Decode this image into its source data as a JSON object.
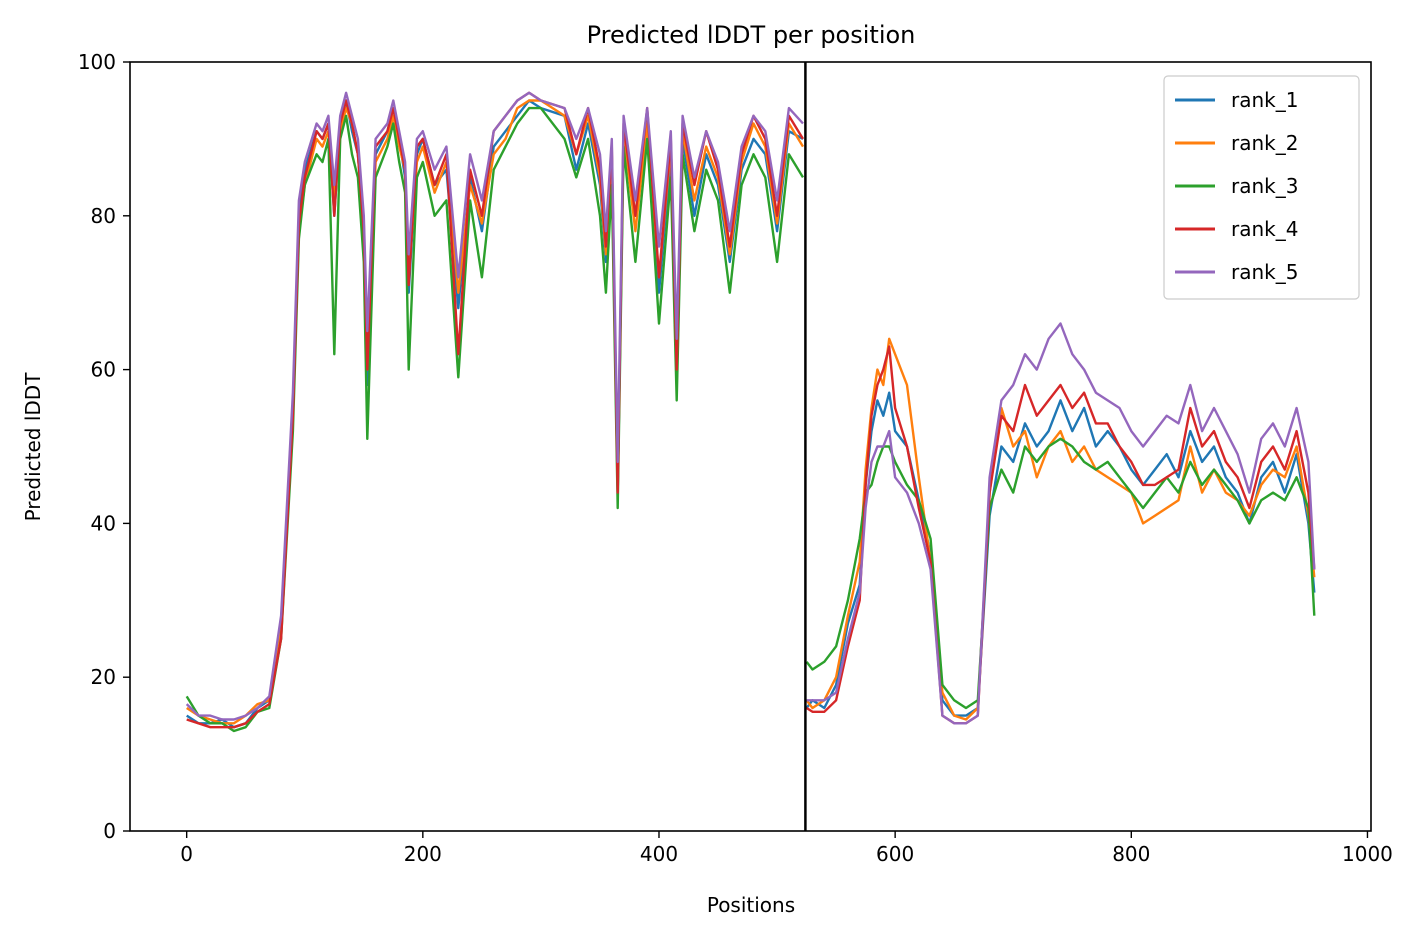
{
  "chart_data": {
    "type": "line",
    "title": "Predicted lDDT per position",
    "xlabel": "Positions",
    "ylabel": "Predicted lDDT",
    "xlim": [
      -48,
      1003
    ],
    "ylim": [
      0,
      100
    ],
    "xticks": [
      0,
      200,
      400,
      600,
      800,
      1000
    ],
    "yticks": [
      0,
      20,
      40,
      60,
      80,
      100
    ],
    "grid": false,
    "legend_position": "top-right",
    "chain_break": 524,
    "x": [
      0,
      10,
      20,
      30,
      40,
      50,
      60,
      70,
      80,
      90,
      95,
      100,
      110,
      115,
      120,
      125,
      130,
      135,
      140,
      145,
      150,
      153,
      160,
      170,
      175,
      180,
      185,
      188,
      195,
      200,
      210,
      220,
      230,
      240,
      250,
      260,
      270,
      280,
      290,
      300,
      320,
      330,
      340,
      350,
      355,
      360,
      365,
      370,
      380,
      390,
      400,
      410,
      415,
      420,
      430,
      440,
      450,
      460,
      470,
      480,
      490,
      500,
      510,
      522,
      525,
      530,
      540,
      550,
      560,
      570,
      575,
      580,
      585,
      590,
      595,
      600,
      610,
      620,
      630,
      640,
      650,
      660,
      670,
      680,
      690,
      700,
      710,
      720,
      730,
      740,
      750,
      760,
      770,
      780,
      790,
      800,
      810,
      820,
      830,
      840,
      850,
      860,
      870,
      880,
      890,
      900,
      910,
      920,
      930,
      940,
      950,
      955
    ],
    "series": [
      {
        "name": "rank_1",
        "color": "#1f77b4",
        "values": [
          15,
          14,
          14,
          14.5,
          13.5,
          14,
          16,
          17,
          27,
          55,
          80,
          86,
          91,
          90,
          92,
          80,
          92,
          95,
          91,
          88,
          78,
          58,
          88,
          91,
          94,
          90,
          85,
          70,
          88,
          90,
          84,
          86,
          68,
          85,
          78,
          89,
          91,
          93,
          95,
          94,
          93,
          86,
          92,
          84,
          74,
          87,
          44,
          91,
          80,
          92,
          70,
          88,
          58,
          90,
          80,
          88,
          84,
          74,
          86,
          90,
          88,
          78,
          91,
          90,
          16,
          17,
          16,
          19,
          27,
          32,
          45,
          52,
          56,
          54,
          57,
          52,
          50,
          43,
          36,
          17,
          15,
          15,
          16,
          41,
          50,
          48,
          53,
          50,
          52,
          56,
          52,
          55,
          50,
          52,
          50,
          47,
          45,
          47,
          49,
          46,
          52,
          48,
          50,
          46,
          44,
          40,
          46,
          48,
          44,
          49,
          40,
          31
        ]
      },
      {
        "name": "rank_2",
        "color": "#ff7f0e",
        "values": [
          16,
          15,
          14.5,
          14,
          14,
          15,
          16.5,
          17,
          26,
          55,
          78,
          84,
          90,
          89,
          91,
          82,
          91,
          94,
          92,
          88,
          79,
          60,
          87,
          90,
          93,
          89,
          86,
          72,
          87,
          89,
          83,
          87,
          70,
          84,
          79,
          88,
          90,
          94,
          95,
          95,
          93,
          88,
          93,
          85,
          75,
          88,
          45,
          91,
          78,
          92,
          72,
          89,
          60,
          91,
          82,
          89,
          85,
          75,
          87,
          92,
          89,
          79,
          92,
          89,
          17,
          16,
          17,
          20,
          28,
          35,
          47,
          55,
          60,
          58,
          64,
          62,
          58,
          46,
          35,
          18,
          15,
          14.5,
          16,
          44,
          55,
          50,
          52,
          46,
          50,
          52,
          48,
          50,
          47,
          46,
          45,
          44,
          40,
          41,
          42,
          43,
          50,
          44,
          47,
          44,
          43,
          41,
          45,
          47,
          46,
          50,
          41,
          33
        ]
      },
      {
        "name": "rank_3",
        "color": "#2ca02c",
        "values": [
          17.5,
          15,
          14,
          14,
          13,
          13.5,
          15.5,
          16,
          25,
          52,
          77,
          84,
          88,
          87,
          90,
          62,
          90,
          93,
          88,
          85,
          74,
          51,
          85,
          89,
          92,
          87,
          83,
          60,
          85,
          87,
          80,
          82,
          59,
          82,
          72,
          86,
          89,
          92,
          94,
          94,
          90,
          85,
          90,
          80,
          70,
          84,
          42,
          89,
          74,
          90,
          66,
          85,
          56,
          88,
          78,
          86,
          82,
          70,
          84,
          88,
          85,
          74,
          88,
          85,
          22,
          21,
          22,
          24,
          30,
          38,
          44,
          45,
          48,
          50,
          50,
          48,
          45,
          43,
          38,
          19,
          17,
          16,
          17,
          42,
          47,
          44,
          50,
          48,
          50,
          51,
          50,
          48,
          47,
          48,
          46,
          44,
          42,
          44,
          46,
          44,
          48,
          45,
          47,
          45,
          43,
          40,
          43,
          44,
          43,
          46,
          42,
          28
        ]
      },
      {
        "name": "rank_4",
        "color": "#d62728",
        "values": [
          14.5,
          14,
          13.5,
          13.5,
          13.5,
          14,
          15.5,
          16.5,
          25,
          54,
          79,
          85,
          91,
          90,
          92,
          80,
          92,
          95,
          92,
          88,
          78,
          60,
          89,
          91,
          94,
          90,
          86,
          71,
          89,
          90,
          84,
          88,
          62,
          86,
          80,
          91,
          93,
          95,
          96,
          95,
          94,
          88,
          94,
          86,
          76,
          89,
          44,
          92,
          80,
          94,
          72,
          90,
          60,
          92,
          84,
          91,
          86,
          76,
          88,
          93,
          90,
          80,
          93,
          90,
          16,
          15.5,
          15.5,
          17,
          24,
          30,
          45,
          54,
          58,
          60,
          63,
          55,
          50,
          42,
          35,
          15,
          14,
          14,
          15,
          44,
          54,
          52,
          58,
          54,
          56,
          58,
          55,
          57,
          53,
          53,
          50,
          48,
          45,
          45,
          46,
          47,
          55,
          50,
          52,
          48,
          46,
          42,
          48,
          50,
          47,
          52,
          44,
          34
        ]
      },
      {
        "name": "rank_5",
        "color": "#9467bd",
        "values": [
          16.5,
          15,
          15,
          14.5,
          14.5,
          15,
          16,
          17.5,
          28,
          57,
          82,
          87,
          92,
          91,
          93,
          84,
          93,
          96,
          93,
          90,
          80,
          65,
          90,
          92,
          95,
          91,
          87,
          75,
          90,
          91,
          86,
          89,
          72,
          88,
          82,
          91,
          93,
          95,
          96,
          95,
          94,
          90,
          94,
          88,
          78,
          90,
          48,
          93,
          82,
          94,
          76,
          91,
          64,
          93,
          85,
          91,
          87,
          78,
          89,
          93,
          91,
          82,
          94,
          92,
          17,
          17,
          17,
          18,
          25,
          31,
          42,
          48,
          50,
          50,
          52,
          46,
          44,
          40,
          34,
          15,
          14,
          14,
          15,
          46,
          56,
          58,
          62,
          60,
          64,
          66,
          62,
          60,
          57,
          56,
          55,
          52,
          50,
          52,
          54,
          53,
          58,
          52,
          55,
          52,
          49,
          44,
          51,
          53,
          50,
          55,
          48,
          34
        ]
      }
    ]
  }
}
